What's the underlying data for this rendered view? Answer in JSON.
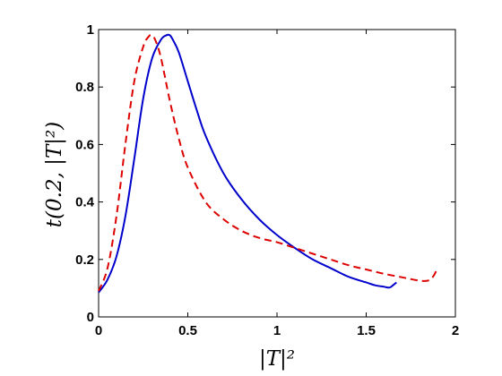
{
  "chart_data": {
    "type": "line",
    "xlabel": "|T|²",
    "ylabel": "t(0.2, |T|²)",
    "xlim": [
      0,
      2
    ],
    "ylim": [
      0,
      1
    ],
    "x_ticks": [
      0,
      0.5,
      1,
      1.5,
      2
    ],
    "x_tick_labels": [
      "0",
      "0.5",
      "1",
      "1.5",
      "2"
    ],
    "y_ticks": [
      0,
      0.2,
      0.4,
      0.6,
      0.8,
      1
    ],
    "y_tick_labels": [
      "0",
      "0.2",
      "0.4",
      "0.6",
      "0.8",
      "1"
    ],
    "grid": false,
    "legend": "none",
    "series": [
      {
        "color": "#0000cc",
        "style": "solid",
        "x": [
          0,
          0.05,
          0.1,
          0.15,
          0.2,
          0.25,
          0.3,
          0.35,
          0.38,
          0.4,
          0.42,
          0.45,
          0.5,
          0.55,
          0.6,
          0.7,
          0.8,
          0.9,
          1.0,
          1.1,
          1.2,
          1.3,
          1.4,
          1.5,
          1.55,
          1.6,
          1.63,
          1.65,
          1.67
        ],
        "y": [
          0.085,
          0.13,
          0.21,
          0.35,
          0.55,
          0.76,
          0.9,
          0.965,
          0.98,
          0.98,
          0.96,
          0.92,
          0.82,
          0.72,
          0.63,
          0.5,
          0.41,
          0.34,
          0.285,
          0.24,
          0.2,
          0.17,
          0.14,
          0.12,
          0.11,
          0.105,
          0.102,
          0.11,
          0.12
        ]
      },
      {
        "color": "#dd0000",
        "style": "dashed",
        "x": [
          0,
          0.05,
          0.1,
          0.15,
          0.2,
          0.25,
          0.28,
          0.3,
          0.32,
          0.35,
          0.4,
          0.45,
          0.5,
          0.6,
          0.7,
          0.8,
          0.9,
          1.0,
          1.1,
          1.2,
          1.3,
          1.4,
          1.5,
          1.6,
          1.7,
          1.78,
          1.83,
          1.86,
          1.88,
          1.9
        ],
        "y": [
          0.09,
          0.17,
          0.35,
          0.6,
          0.82,
          0.94,
          0.975,
          0.98,
          0.96,
          0.9,
          0.75,
          0.62,
          0.52,
          0.4,
          0.34,
          0.3,
          0.275,
          0.26,
          0.24,
          0.22,
          0.2,
          0.18,
          0.165,
          0.15,
          0.138,
          0.128,
          0.125,
          0.13,
          0.145,
          0.17
        ]
      }
    ]
  }
}
